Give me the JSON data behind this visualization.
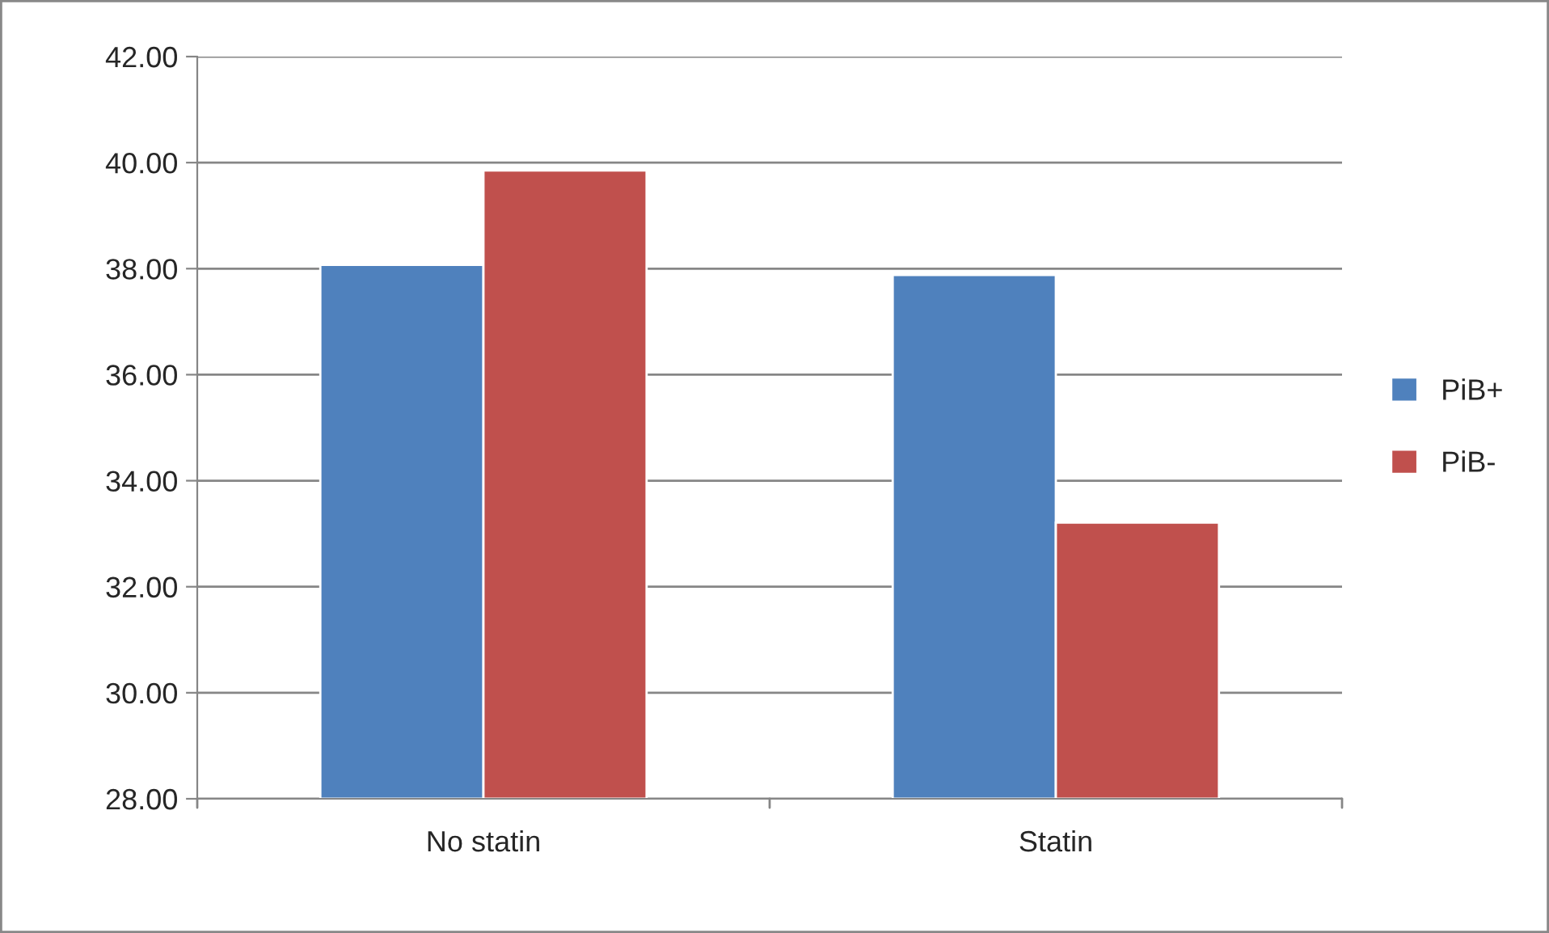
{
  "chart_data": {
    "type": "bar",
    "categories": [
      "No statin",
      "Statin"
    ],
    "series": [
      {
        "name": "PiB+",
        "color": "#4f81bd",
        "values": [
          38.07,
          37.88
        ]
      },
      {
        "name": "PiB-",
        "color": "#c0504d",
        "values": [
          39.85,
          33.21
        ]
      }
    ],
    "ylim": [
      28,
      42
    ],
    "yticks": [
      {
        "value": 28,
        "label": "28.00"
      },
      {
        "value": 30,
        "label": "30.00"
      },
      {
        "value": 32,
        "label": "32.00"
      },
      {
        "value": 34,
        "label": "34.00"
      },
      {
        "value": 36,
        "label": "36.00"
      },
      {
        "value": 38,
        "label": "38.00"
      },
      {
        "value": 40,
        "label": "40.00"
      },
      {
        "value": 42,
        "label": "42.00"
      }
    ],
    "grid": "y",
    "legend": "right"
  }
}
